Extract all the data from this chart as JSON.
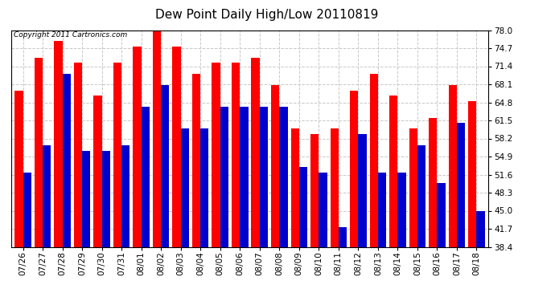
{
  "title": "Dew Point Daily High/Low 20110819",
  "copyright": "Copyright 2011 Cartronics.com",
  "dates": [
    "07/26",
    "07/27",
    "07/28",
    "07/29",
    "07/30",
    "07/31",
    "08/01",
    "08/02",
    "08/03",
    "08/04",
    "08/05",
    "08/06",
    "08/07",
    "08/08",
    "08/09",
    "08/10",
    "08/11",
    "08/12",
    "08/13",
    "08/14",
    "08/15",
    "08/16",
    "08/17",
    "08/18"
  ],
  "highs": [
    67,
    73,
    76,
    72,
    66,
    72,
    75,
    79,
    75,
    70,
    72,
    72,
    73,
    68,
    60,
    59,
    60,
    67,
    70,
    66,
    60,
    62,
    68,
    65
  ],
  "lows": [
    52,
    57,
    70,
    56,
    56,
    57,
    64,
    68,
    60,
    60,
    64,
    64,
    64,
    64,
    53,
    52,
    42,
    59,
    52,
    52,
    57,
    50,
    61,
    45
  ],
  "high_color": "#ff0000",
  "low_color": "#0000cc",
  "bg_color": "#ffffff",
  "grid_color": "#c8c8c8",
  "ymin": 38.4,
  "ymax": 78.0,
  "yticks": [
    38.4,
    41.7,
    45.0,
    48.3,
    51.6,
    54.9,
    58.2,
    61.5,
    64.8,
    68.1,
    71.4,
    74.7,
    78.0
  ],
  "bar_width": 0.42,
  "figsize": [
    6.9,
    3.75
  ],
  "dpi": 100,
  "title_fontsize": 11,
  "tick_fontsize": 7.5,
  "copyright_fontsize": 6.5
}
